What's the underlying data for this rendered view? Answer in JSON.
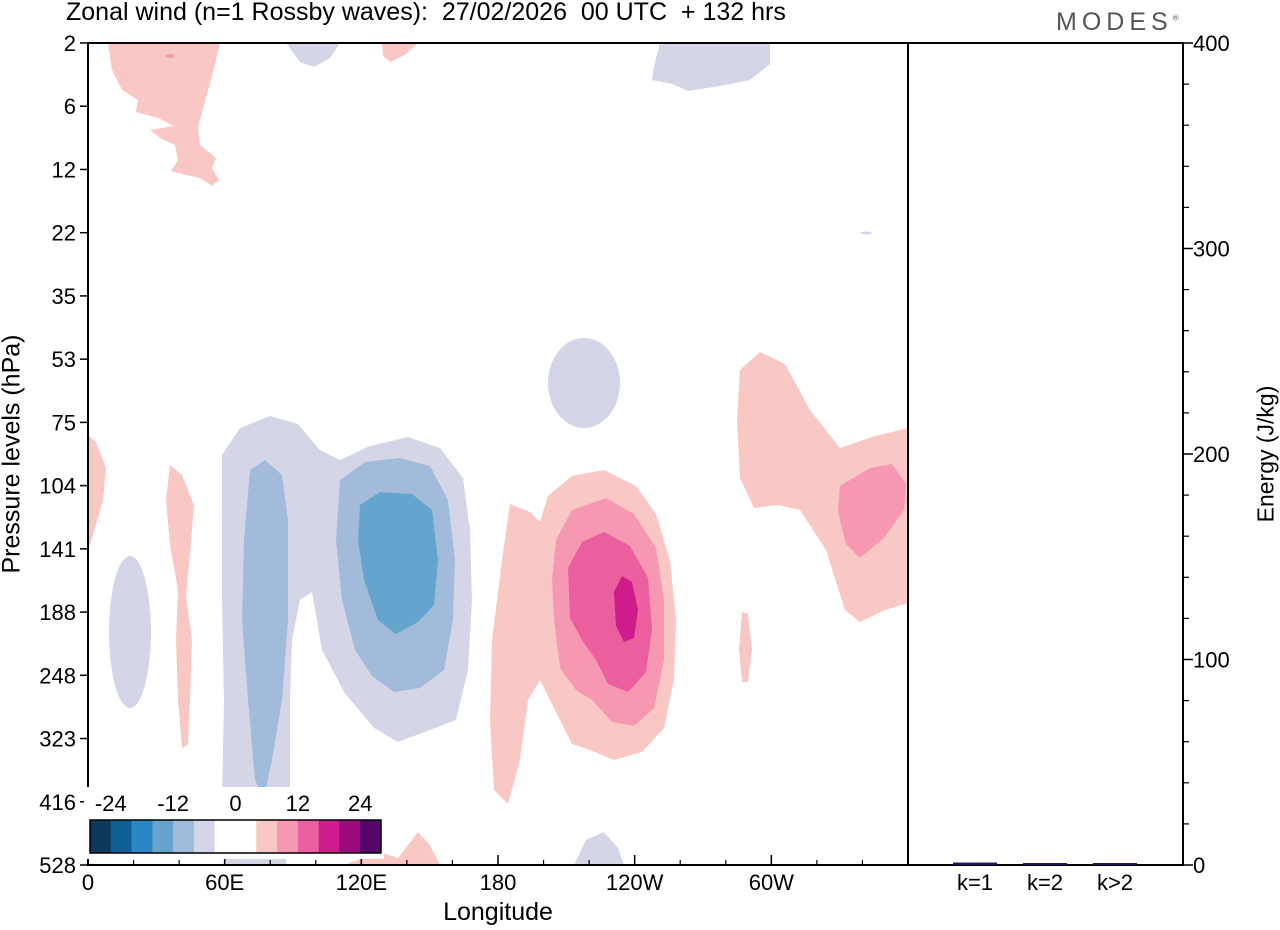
{
  "header": {
    "title": "Zonal wind (n=1 Rossby waves):  27/02/2026  00 UTC  + 132 hrs",
    "brand": "MODES",
    "brand_mark": "®"
  },
  "chart_data": [
    {
      "type": "heatmap",
      "name": "zonal-wind-contour",
      "title": "Zonal wind (n=1 Rossby waves):  27/02/2026  00 UTC  + 132 hrs",
      "xlabel": "Longitude",
      "ylabel": "Pressure levels (hPa)",
      "x_ticks": [
        {
          "lon": 0,
          "label": "0"
        },
        {
          "lon": 60,
          "label": "60E"
        },
        {
          "lon": 120,
          "label": "120E"
        },
        {
          "lon": 180,
          "label": "180"
        },
        {
          "lon": 240,
          "label": "120W"
        },
        {
          "lon": 300,
          "label": "60W"
        }
      ],
      "xlim": [
        0,
        360
      ],
      "y_levels": [
        "2",
        "6",
        "12",
        "22",
        "35",
        "53",
        "75",
        "104",
        "141",
        "188",
        "248",
        "323",
        "416",
        "528"
      ],
      "colorbar": {
        "tick_labels": [
          "-24",
          "-12",
          "0",
          "12",
          "24"
        ],
        "tick_values": [
          -24,
          -12,
          0,
          12,
          24
        ],
        "levels": [
          -28,
          -24,
          -20,
          -16,
          -12,
          -8,
          -4,
          0,
          4,
          8,
          12,
          16,
          20,
          24,
          28
        ],
        "colors": [
          "#0d3a5c",
          "#0f5f96",
          "#2a86c4",
          "#64a4cd",
          "#a3bbdb",
          "#d4d6e8",
          "#ffffff",
          "#ffffff",
          "#f9c8c5",
          "#f698b2",
          "#ec5f9e",
          "#ce1c8c",
          "#9a0b7d",
          "#55066b"
        ]
      },
      "features": [
        {
          "name": "negative-anomaly-120E",
          "lon": 130,
          "level": "141",
          "peak": -16
        },
        {
          "name": "negative-anomaly-75E",
          "lon": 75,
          "level": "188",
          "peak": -12
        },
        {
          "name": "positive-anomaly-120W",
          "lon": 237,
          "level": "188",
          "peak": 20
        },
        {
          "name": "positive-anomaly-40W",
          "lon": 345,
          "level": "104",
          "peak": 8
        }
      ]
    },
    {
      "type": "bar",
      "name": "energy-bars",
      "categories": [
        "k=1",
        "k=2",
        "k>2"
      ],
      "values": [
        1.2,
        0.4,
        0.8
      ],
      "ylabel": "Energy (J/kg)",
      "ylim": [
        0,
        400
      ],
      "y_tick_labels": [
        "0",
        "100",
        "200",
        "300",
        "400"
      ],
      "bar_color": "#1a1a5a"
    }
  ]
}
